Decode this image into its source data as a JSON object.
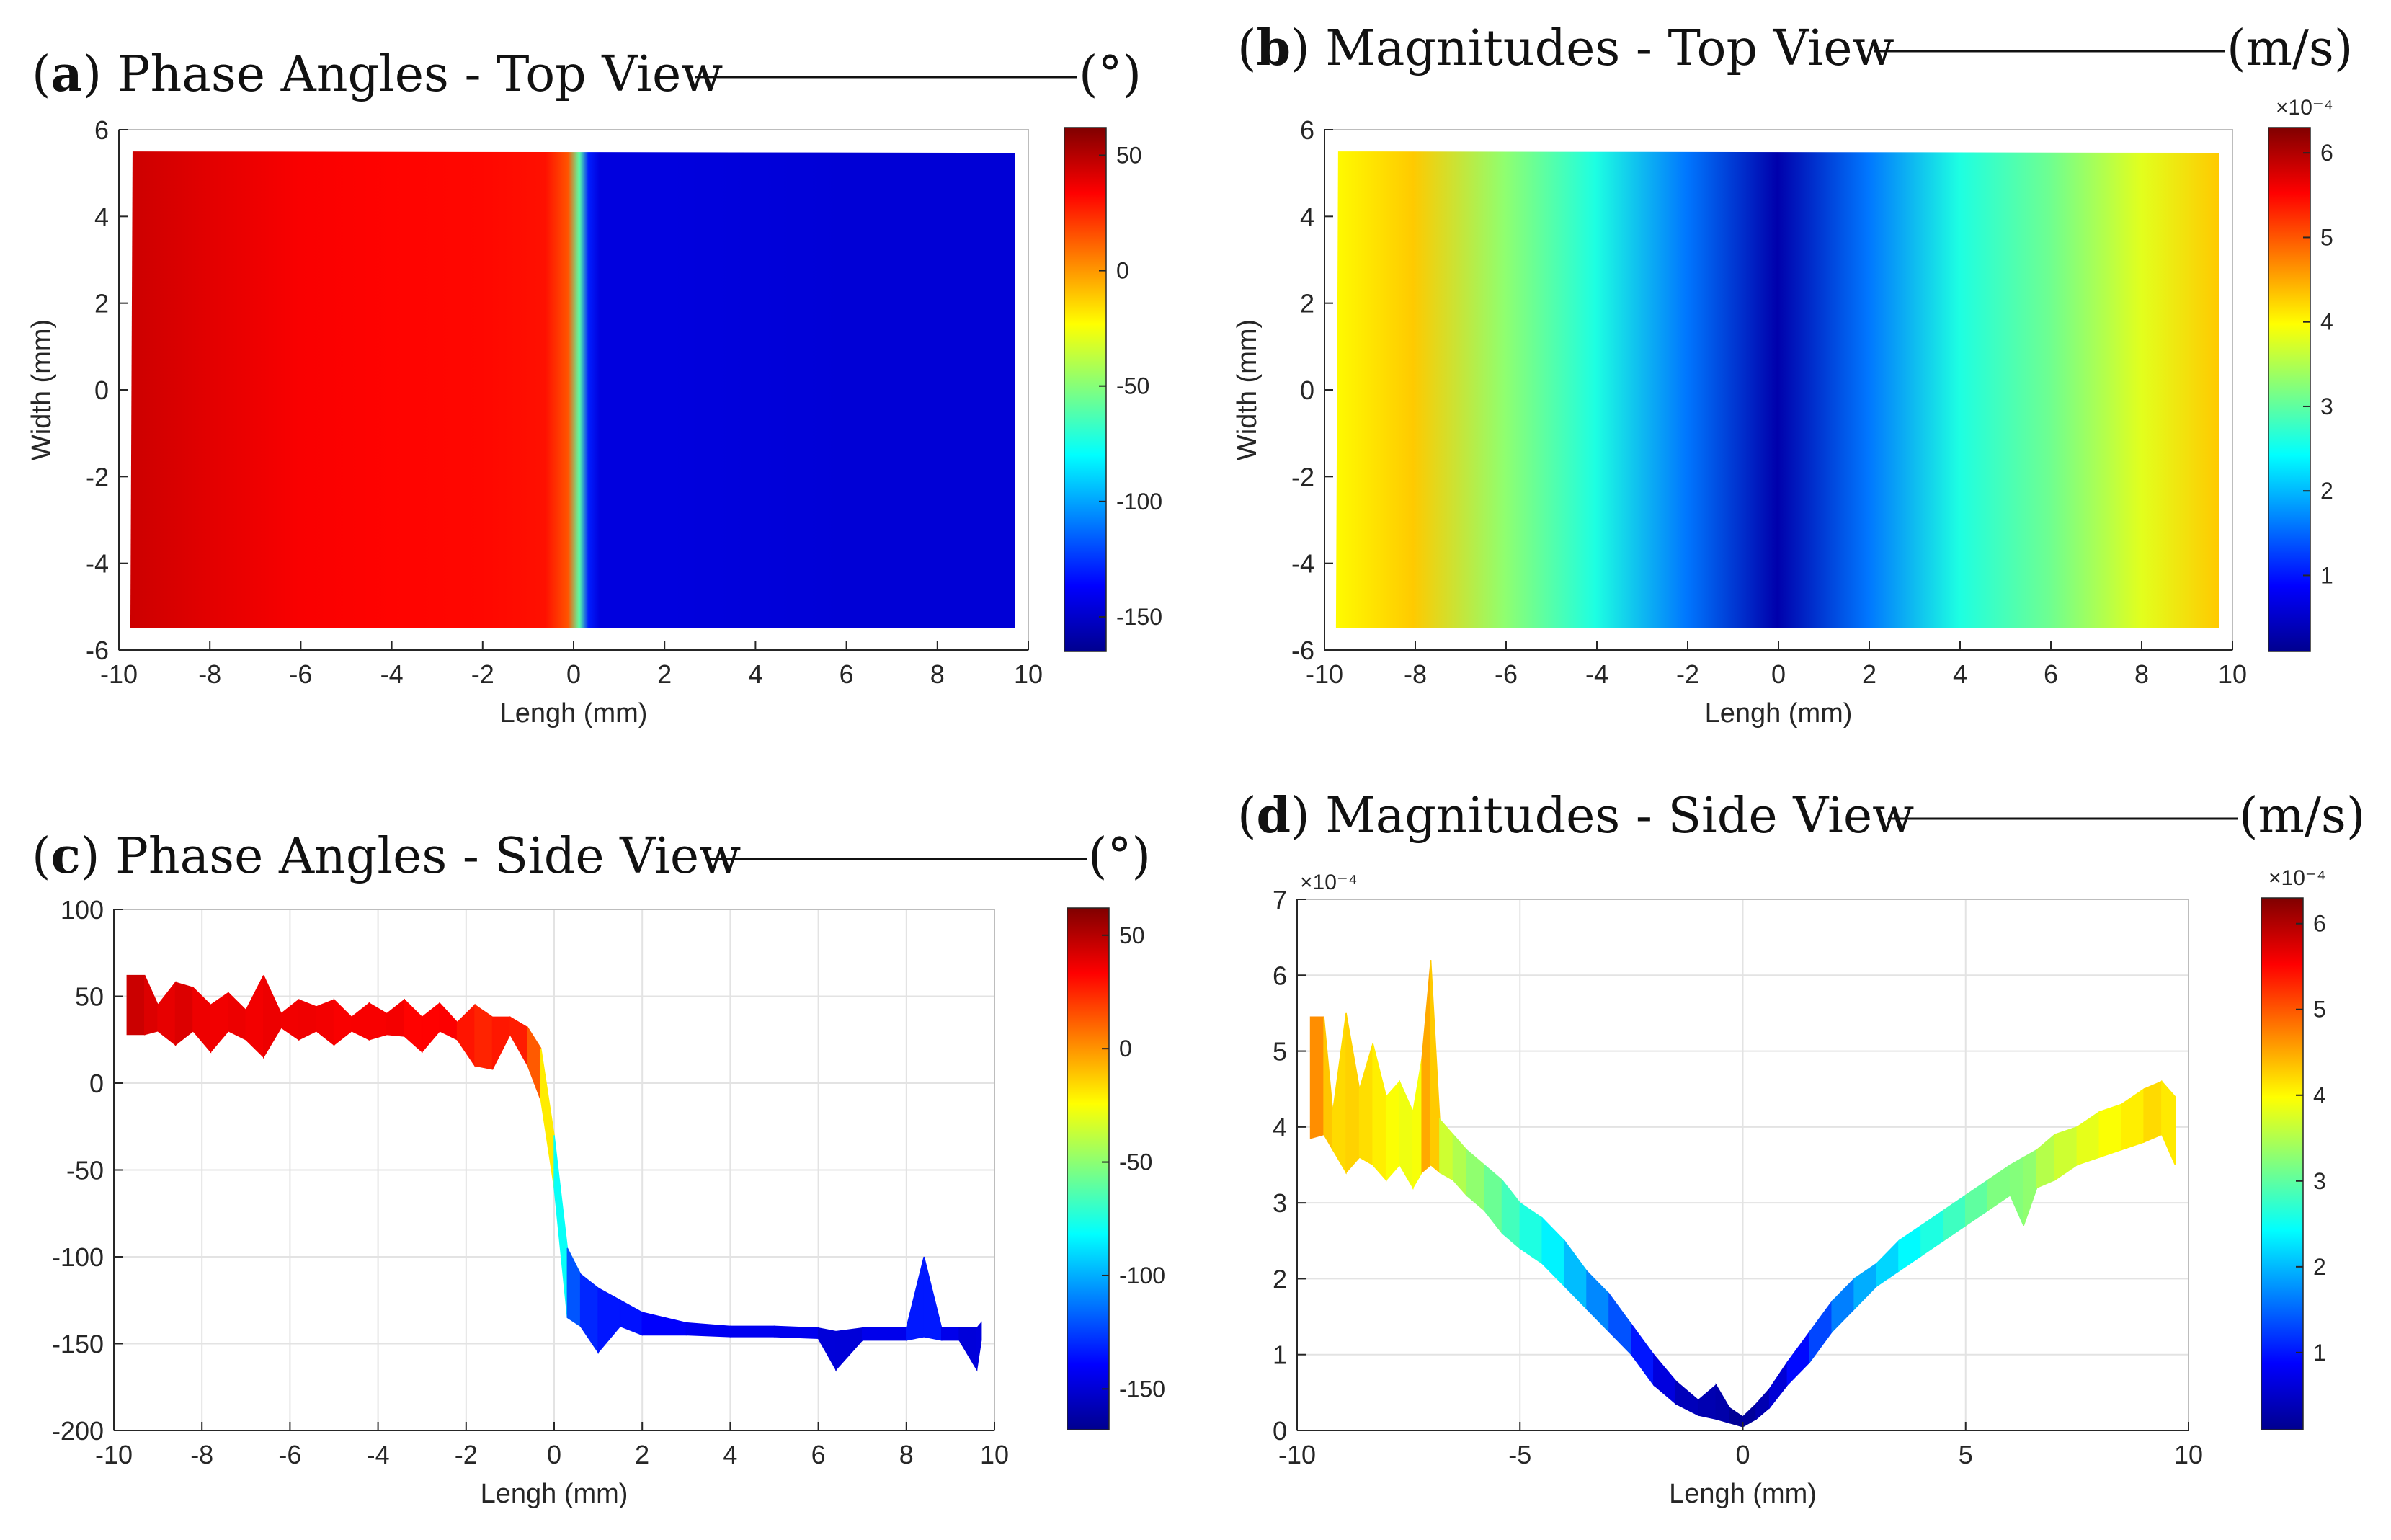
{
  "colors": {
    "jet": [
      "#00008f",
      "#0000ff",
      "#00ffff",
      "#ffff00",
      "#ff0000",
      "#800000"
    ],
    "grid": "#e0e0e0",
    "axis": "#262626"
  },
  "chart_data": [
    {
      "id": "a",
      "type": "heatmap",
      "title_letter": "a",
      "title_text": "Phase Angles - Top View",
      "unit": "(°)",
      "xlabel": "Lengh (mm)",
      "ylabel": "Width (mm)",
      "xlim": [
        -10,
        10
      ],
      "ylim": [
        -6,
        6
      ],
      "xticks": [
        "-10",
        "-8",
        "-6",
        "-4",
        "-2",
        "0",
        "2",
        "4",
        "6",
        "8",
        "10"
      ],
      "yticks": [
        "-6",
        "-4",
        "-2",
        "0",
        "2",
        "4",
        "6"
      ],
      "data_extent": {
        "x": [
          -9.7,
          9.7
        ],
        "y": [
          -5.5,
          5.5
        ]
      },
      "profile": {
        "x": [
          -9.7,
          -8,
          -6,
          -4,
          -2,
          -0.6,
          -0.1,
          0.15,
          0.35,
          0.6,
          2,
          4,
          6,
          8,
          9.7
        ],
        "z": [
          45,
          40,
          35,
          33,
          32,
          30,
          15,
          -60,
          -130,
          -145,
          -145,
          -146,
          -147,
          -147,
          -147
        ]
      },
      "colorbar": {
        "clim": [
          -165,
          62
        ],
        "ticks": [
          "50",
          "0",
          "-50",
          "-100",
          "-150"
        ],
        "tick_values": [
          50,
          0,
          -50,
          -100,
          -150
        ],
        "exponent": ""
      }
    },
    {
      "id": "b",
      "type": "heatmap",
      "title_letter": "b",
      "title_text": "Magnitudes - Top View",
      "unit": "(m/s)",
      "xlabel": "Lengh (mm)",
      "ylabel": "Width (mm)",
      "xlim": [
        -10,
        10
      ],
      "ylim": [
        -6,
        6
      ],
      "xticks": [
        "-10",
        "-8",
        "-6",
        "-4",
        "-2",
        "0",
        "2",
        "4",
        "6",
        "8",
        "10"
      ],
      "yticks": [
        "-6",
        "-4",
        "-2",
        "0",
        "2",
        "4",
        "6"
      ],
      "data_extent": {
        "x": [
          -9.7,
          9.7
        ],
        "y": [
          -5.5,
          5.5
        ]
      },
      "profile": {
        "x": [
          -9.7,
          -8,
          -6,
          -4,
          -2,
          0,
          2,
          4,
          6,
          8,
          9.7
        ],
        "z": [
          4.0,
          4.3,
          3.3,
          2.6,
          1.6,
          0.3,
          1.6,
          2.6,
          3.1,
          3.8,
          4.3
        ]
      },
      "colorbar": {
        "clim": [
          0.1,
          6.3
        ],
        "ticks": [
          "6",
          "5",
          "4",
          "3",
          "2",
          "1"
        ],
        "tick_values": [
          6,
          5,
          4,
          3,
          2,
          1
        ],
        "exponent": "×10⁻⁴"
      }
    },
    {
      "id": "c",
      "type": "area",
      "title_letter": "c",
      "title_text": "Phase Angles - Side View",
      "unit": "(°)",
      "xlabel": "Lengh (mm)",
      "ylabel": "",
      "xlim": [
        -10,
        10
      ],
      "ylim": [
        -200,
        100
      ],
      "xticks": [
        "-10",
        "-8",
        "-6",
        "-4",
        "-2",
        "0",
        "2",
        "4",
        "6",
        "8",
        "10"
      ],
      "yticks": [
        "-200",
        "-150",
        "-100",
        "-50",
        "0",
        "50",
        "100"
      ],
      "x": [
        -9.7,
        -9.3,
        -9,
        -8.6,
        -8.2,
        -7.8,
        -7.4,
        -7,
        -6.6,
        -6.2,
        -5.8,
        -5.4,
        -5,
        -4.6,
        -4.2,
        -3.8,
        -3.4,
        -3,
        -2.6,
        -2.2,
        -1.8,
        -1.4,
        -1,
        -0.6,
        -0.3,
        0,
        0.3,
        0.6,
        1,
        1.5,
        2,
        3,
        4,
        5,
        6,
        6.4,
        7,
        8,
        8.4,
        8.8,
        9.2,
        9.6,
        9.7
      ],
      "upper": [
        62,
        62,
        45,
        58,
        55,
        45,
        52,
        42,
        62,
        40,
        48,
        44,
        48,
        38,
        46,
        40,
        48,
        38,
        46,
        35,
        45,
        38,
        38,
        32,
        20,
        -30,
        -95,
        -110,
        -118,
        -125,
        -132,
        -138,
        -140,
        -140,
        -141,
        -143,
        -141,
        -141,
        -100,
        -141,
        -141,
        -141,
        -138
      ],
      "lower": [
        28,
        28,
        30,
        22,
        30,
        18,
        30,
        25,
        15,
        32,
        25,
        30,
        22,
        30,
        25,
        28,
        27,
        18,
        30,
        25,
        10,
        8,
        28,
        10,
        -10,
        -60,
        -135,
        -140,
        -155,
        -140,
        -145,
        -145,
        -146,
        -146,
        -147,
        -165,
        -148,
        -148,
        -146,
        -148,
        -148,
        -165,
        -148
      ],
      "colorbar": {
        "clim": [
          -168,
          62
        ],
        "ticks": [
          "50",
          "0",
          "-50",
          "-100",
          "-150"
        ],
        "tick_values": [
          50,
          0,
          -50,
          -100,
          -150
        ],
        "exponent": ""
      }
    },
    {
      "id": "d",
      "type": "area",
      "title_letter": "d",
      "title_text": "Magnitudes - Side View",
      "unit": "(m/s)",
      "xlabel": "Lengh (mm)",
      "ylabel": "",
      "xlim": [
        -10,
        10
      ],
      "ylim": [
        0,
        7
      ],
      "xticks": [
        "-10",
        "-5",
        "0",
        "5",
        "10"
      ],
      "yticks": [
        "0",
        "1",
        "2",
        "3",
        "4",
        "5",
        "6",
        "7"
      ],
      "axis_exponent": "×10⁻⁴",
      "x": [
        -9.7,
        -9.4,
        -9.2,
        -8.9,
        -8.6,
        -8.3,
        -8,
        -7.7,
        -7.4,
        -7.2,
        -7,
        -6.8,
        -6.5,
        -6.2,
        -5.8,
        -5.4,
        -5,
        -4.5,
        -4,
        -3.5,
        -3,
        -2.5,
        -2,
        -1.5,
        -1,
        -0.6,
        -0.3,
        0,
        0.3,
        0.6,
        1,
        1.5,
        2,
        2.5,
        3,
        3.5,
        4,
        4.5,
        5,
        5.5,
        6,
        6.3,
        6.6,
        7,
        7.5,
        8,
        8.5,
        9,
        9.4,
        9.7
      ],
      "upper": [
        5.45,
        5.45,
        4.2,
        5.5,
        4.5,
        5.1,
        4.4,
        4.6,
        4.2,
        4.9,
        6.2,
        4.1,
        3.9,
        3.7,
        3.5,
        3.3,
        3.0,
        2.8,
        2.5,
        2.1,
        1.8,
        1.4,
        1.0,
        0.65,
        0.4,
        0.6,
        0.3,
        0.18,
        0.35,
        0.55,
        0.9,
        1.3,
        1.7,
        2.0,
        2.2,
        2.5,
        2.7,
        2.9,
        3.1,
        3.3,
        3.5,
        3.6,
        3.7,
        3.9,
        4.0,
        4.2,
        4.3,
        4.5,
        4.6,
        4.4
      ],
      "lower": [
        3.85,
        3.9,
        3.7,
        3.4,
        3.6,
        3.5,
        3.3,
        3.5,
        3.2,
        3.4,
        3.5,
        3.4,
        3.3,
        3.1,
        2.9,
        2.6,
        2.4,
        2.2,
        1.9,
        1.6,
        1.3,
        1.0,
        0.6,
        0.35,
        0.2,
        0.15,
        0.1,
        0.05,
        0.15,
        0.3,
        0.6,
        0.9,
        1.3,
        1.6,
        1.9,
        2.1,
        2.3,
        2.5,
        2.7,
        2.9,
        3.1,
        2.7,
        3.2,
        3.3,
        3.5,
        3.6,
        3.7,
        3.8,
        3.9,
        3.5
      ],
      "colorbar": {
        "clim": [
          0.1,
          6.3
        ],
        "ticks": [
          "6",
          "5",
          "4",
          "3",
          "2",
          "1"
        ],
        "tick_values": [
          6,
          5,
          4,
          3,
          2,
          1
        ],
        "exponent": "×10⁻⁴"
      }
    }
  ]
}
